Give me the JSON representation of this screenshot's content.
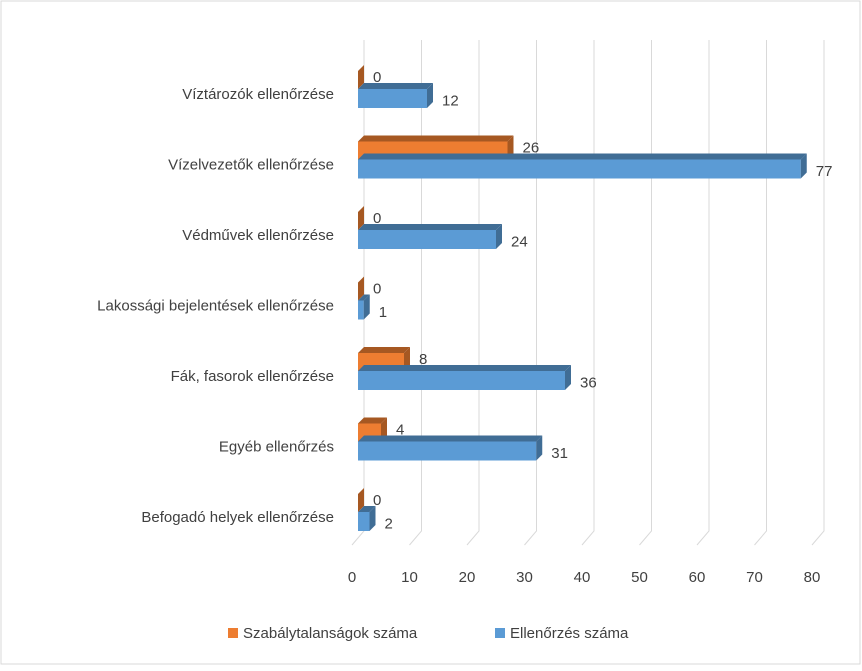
{
  "chart_data": {
    "type": "bar",
    "orientation": "horizontal",
    "categories": [
      "Víztározók ellenőrzése",
      "Vízelvezetők ellenőrzése",
      "Védművek ellenőrzése",
      "Lakossági bejelentések ellenőrzése",
      "Fák, fasorok ellenőrzése",
      "Egyéb ellenőrzés",
      "Befogadó helyek ellenőrzése"
    ],
    "series": [
      {
        "name": "Szabálytalanságok száma",
        "color": "#ed7d31",
        "values": [
          0,
          26,
          0,
          0,
          8,
          4,
          0
        ]
      },
      {
        "name": "Ellenőrzés száma",
        "color": "#5b9bd5",
        "values": [
          12,
          77,
          24,
          1,
          36,
          31,
          2
        ]
      }
    ],
    "xlim": [
      0,
      80
    ],
    "xticks": [
      0,
      10,
      20,
      30,
      40,
      50,
      60,
      70,
      80
    ],
    "grid": true,
    "legend": "bottom"
  }
}
